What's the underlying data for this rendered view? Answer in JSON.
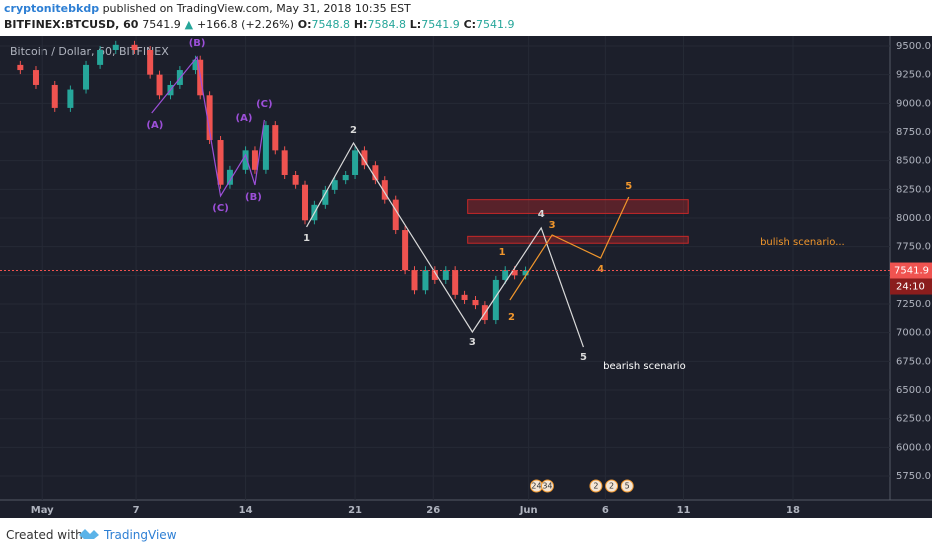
{
  "header": {
    "author": "cryptonitebkdp",
    "published": "published on TradingView.com, May 31, 2018 10:35 EST",
    "symbol": "BITFINEX:BTCUSD, 60",
    "last": "7541.9",
    "arrow": "▲",
    "change": "+166.8 (+2.26%)",
    "open_label": "O:",
    "open": "7548.8",
    "high_label": "H:",
    "high": "7584.8",
    "low_label": "L:",
    "low": "7541.9",
    "close_label": "C:",
    "close": "7541.9"
  },
  "chart_data": {
    "type": "candlestick",
    "legend_title": "Bitcoin / Dollar, 60, BITFINEX",
    "up_color": "#26a69a",
    "down_color": "#ef5350",
    "x": [
      -1.4,
      -0.4,
      0.6,
      1.8,
      2.8,
      3.8,
      4.7,
      5.7,
      6.9,
      7.9,
      8.5,
      9.2,
      9.8,
      10.8,
      11.1,
      11.7,
      12.4,
      13.0,
      14.0,
      14.6,
      15.3,
      15.9,
      16.5,
      17.2,
      17.8,
      18.4,
      19.1,
      19.7,
      20.4,
      21.0,
      21.6,
      22.3,
      22.9,
      23.6,
      24.2,
      24.8,
      25.5,
      26.1,
      26.8,
      27.4,
      28.0,
      28.7,
      29.3,
      30.0,
      30.6,
      31.2,
      31.9
    ],
    "values": [
      9335,
      9290,
      9160,
      8960,
      9120,
      9335,
      9465,
      9510,
      9465,
      9250,
      9070,
      9160,
      9290,
      9380,
      9070,
      8680,
      8290,
      8420,
      8590,
      8420,
      8810,
      8590,
      8375,
      8290,
      7980,
      8115,
      8245,
      8330,
      8375,
      8590,
      8460,
      8330,
      8160,
      7895,
      7545,
      7370,
      7545,
      7460,
      7545,
      7330,
      7285,
      7240,
      7110,
      7460,
      7545,
      7500,
      7541.9
    ],
    "xlim": [
      -1.7,
      55.2
    ],
    "ylim": [
      5541,
      9587
    ],
    "xticks": [
      {
        "value": 1,
        "label": "May"
      },
      7,
      14,
      21,
      26,
      {
        "value": 32.1,
        "label": "Jun"
      },
      {
        "value": 37,
        "label": "6"
      },
      {
        "value": 42,
        "label": "11"
      },
      {
        "value": 49,
        "label": "18"
      }
    ],
    "yticks": [
      {
        "value": 5750,
        "label": "5750.0"
      },
      {
        "value": 6000,
        "label": "6000.0"
      },
      {
        "value": 6250,
        "label": "6250.0"
      },
      {
        "value": 6500,
        "label": "6500.0"
      },
      {
        "value": 6750,
        "label": "6750.0"
      },
      {
        "value": 7000,
        "label": "7000.0"
      },
      {
        "value": 7250,
        "label": "7250.0"
      },
      {
        "value": 7500,
        "label": "7500.0"
      },
      {
        "value": 7750,
        "label": "7750.0"
      },
      {
        "value": 8000,
        "label": "8000.0"
      },
      {
        "value": 8250,
        "label": "8250.0"
      },
      {
        "value": 8500,
        "label": "8500.0"
      },
      {
        "value": 8750,
        "label": "8750.0"
      },
      {
        "value": 9000,
        "label": "9000.0"
      },
      {
        "value": 9250,
        "label": "9250.0"
      },
      {
        "value": 9500,
        "label": "9500.0"
      }
    ],
    "grid": true,
    "last_price": {
      "value": 7541.9,
      "label": "7541.9",
      "countdown": "24:10",
      "color": "#ef5350"
    },
    "zones": [
      {
        "y": [
          8040,
          8160
        ],
        "x": [
          28.2,
          42.3
        ]
      },
      {
        "y": [
          7780,
          7840
        ],
        "x": [
          28.2,
          42.3
        ]
      }
    ],
    "waves": [
      {
        "color": "#9c4fd8",
        "x": [
          8.0,
          10.9,
          12.4,
          14.0,
          14.6,
          15.2
        ],
        "y": [
          8916,
          9404,
          8192,
          8550,
          8288,
          8855
        ],
        "labels": [
          "(A)",
          "(B)",
          "(C)",
          "(A)",
          "(B)",
          "(C)"
        ],
        "label_x": [
          8.2,
          10.9,
          12.4,
          13.9,
          14.5,
          15.2
        ],
        "label_y": [
          8810,
          9525,
          8087,
          8872,
          8183,
          8994
        ]
      },
      {
        "color": "#d9d9d9",
        "x": [
          17.9,
          20.9,
          28.5,
          32.9,
          35.6
        ],
        "y": [
          7922,
          8654,
          7006,
          7913,
          6875
        ],
        "labels": [
          "1",
          "2",
          "3",
          "4",
          "5"
        ],
        "label_x": [
          17.9,
          20.9,
          28.5,
          32.9,
          35.6
        ],
        "label_y": [
          7826,
          8767,
          6919,
          8035,
          6788
        ]
      },
      {
        "color": "#f0962c",
        "x": [
          30.9,
          33.6,
          36.7,
          38.5
        ],
        "y": [
          7285,
          7852,
          7651,
          8183
        ],
        "labels": [
          "1",
          "2",
          "3",
          "4",
          "5"
        ],
        "label_x": [
          30.4,
          31.0,
          33.6,
          36.7,
          38.5
        ],
        "label_y": [
          7704,
          7137,
          7939,
          7555,
          8279
        ]
      }
    ],
    "annotations": [
      {
        "text": "bulish scenario...",
        "x": 49.6,
        "y": 7791,
        "color": "#f0962c"
      },
      {
        "text": "bearish scenario",
        "x": 39.5,
        "y": 6710,
        "color": "#ffffff"
      }
    ],
    "events": [
      {
        "label": "24",
        "x": 32.6
      },
      {
        "label": "34",
        "x": 33.3
      },
      {
        "label": "2",
        "x": 36.4
      },
      {
        "label": "2",
        "x": 37.4
      },
      {
        "label": "5",
        "x": 38.4
      }
    ]
  },
  "footer": {
    "created": "Created with",
    "brand": "TradingView"
  }
}
